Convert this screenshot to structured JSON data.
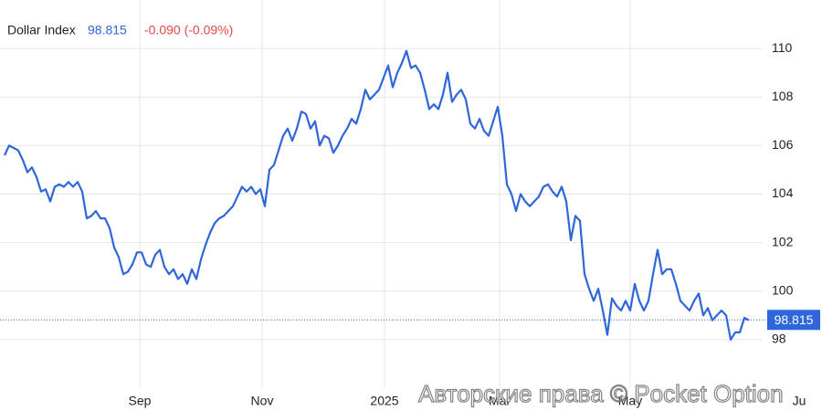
{
  "chart_data": {
    "type": "line",
    "title": "Dollar Index",
    "last_value": 98.815,
    "change_label": "-0.090 (-0.09%)",
    "watermark": "Авторские права © Pocket Option",
    "color": "#2f66d9",
    "grid": true,
    "xlim": [
      -1,
      166
    ],
    "xticks": [
      {
        "value": 29.6,
        "label": "Sep"
      },
      {
        "value": 56.4,
        "label": "Nov"
      },
      {
        "value": 83.2,
        "label": "2025"
      },
      {
        "value": 108.4,
        "label": "Mar"
      },
      {
        "value": 137,
        "label": "May"
      },
      {
        "value": 174,
        "label": "Ju"
      }
    ],
    "ylim": [
      96,
      112
    ],
    "yticks": [
      98,
      100,
      102,
      104,
      106,
      108,
      110
    ],
    "values": [
      105.6,
      106.0,
      105.9,
      105.8,
      105.4,
      104.9,
      105.1,
      104.7,
      104.1,
      104.2,
      103.7,
      104.3,
      104.4,
      104.3,
      104.5,
      104.3,
      104.5,
      104.1,
      103.0,
      103.1,
      103.3,
      103.0,
      103.0,
      102.6,
      101.8,
      101.4,
      100.7,
      100.8,
      101.1,
      101.6,
      101.6,
      101.1,
      101.0,
      101.5,
      101.7,
      101.0,
      100.7,
      100.9,
      100.5,
      100.7,
      100.3,
      100.9,
      100.5,
      101.3,
      101.9,
      102.4,
      102.8,
      103.0,
      103.1,
      103.3,
      103.5,
      103.9,
      104.3,
      104.1,
      104.3,
      104.0,
      104.2,
      103.5,
      105.0,
      105.2,
      105.8,
      106.4,
      106.7,
      106.2,
      106.7,
      107.4,
      107.3,
      106.7,
      107.0,
      106.0,
      106.4,
      106.3,
      105.7,
      106.0,
      106.4,
      106.7,
      107.1,
      106.9,
      107.5,
      108.3,
      107.9,
      108.1,
      108.3,
      108.8,
      109.3,
      108.4,
      109.0,
      109.4,
      109.9,
      109.2,
      109.3,
      109.0,
      108.3,
      107.5,
      107.7,
      107.5,
      108.1,
      109.0,
      107.8,
      108.1,
      108.3,
      107.9,
      106.9,
      106.7,
      107.1,
      106.6,
      106.4,
      107.0,
      107.6,
      106.4,
      104.4,
      104.0,
      103.3,
      104.0,
      103.7,
      103.5,
      103.7,
      103.9,
      104.3,
      104.4,
      104.1,
      103.9,
      104.3,
      103.7,
      102.1,
      103.1,
      102.9,
      100.7,
      100.1,
      99.6,
      100.1,
      99.2,
      98.2,
      99.7,
      99.4,
      99.2,
      99.6,
      99.2,
      100.3,
      99.6,
      99.2,
      99.6,
      100.7,
      101.7,
      100.7,
      100.9,
      100.9,
      100.3,
      99.6,
      99.4,
      99.2,
      99.6,
      99.9,
      99.0,
      99.3,
      98.8,
      99.0,
      99.2,
      99.0,
      98.0,
      98.3,
      98.3,
      98.9,
      98.8
    ]
  }
}
